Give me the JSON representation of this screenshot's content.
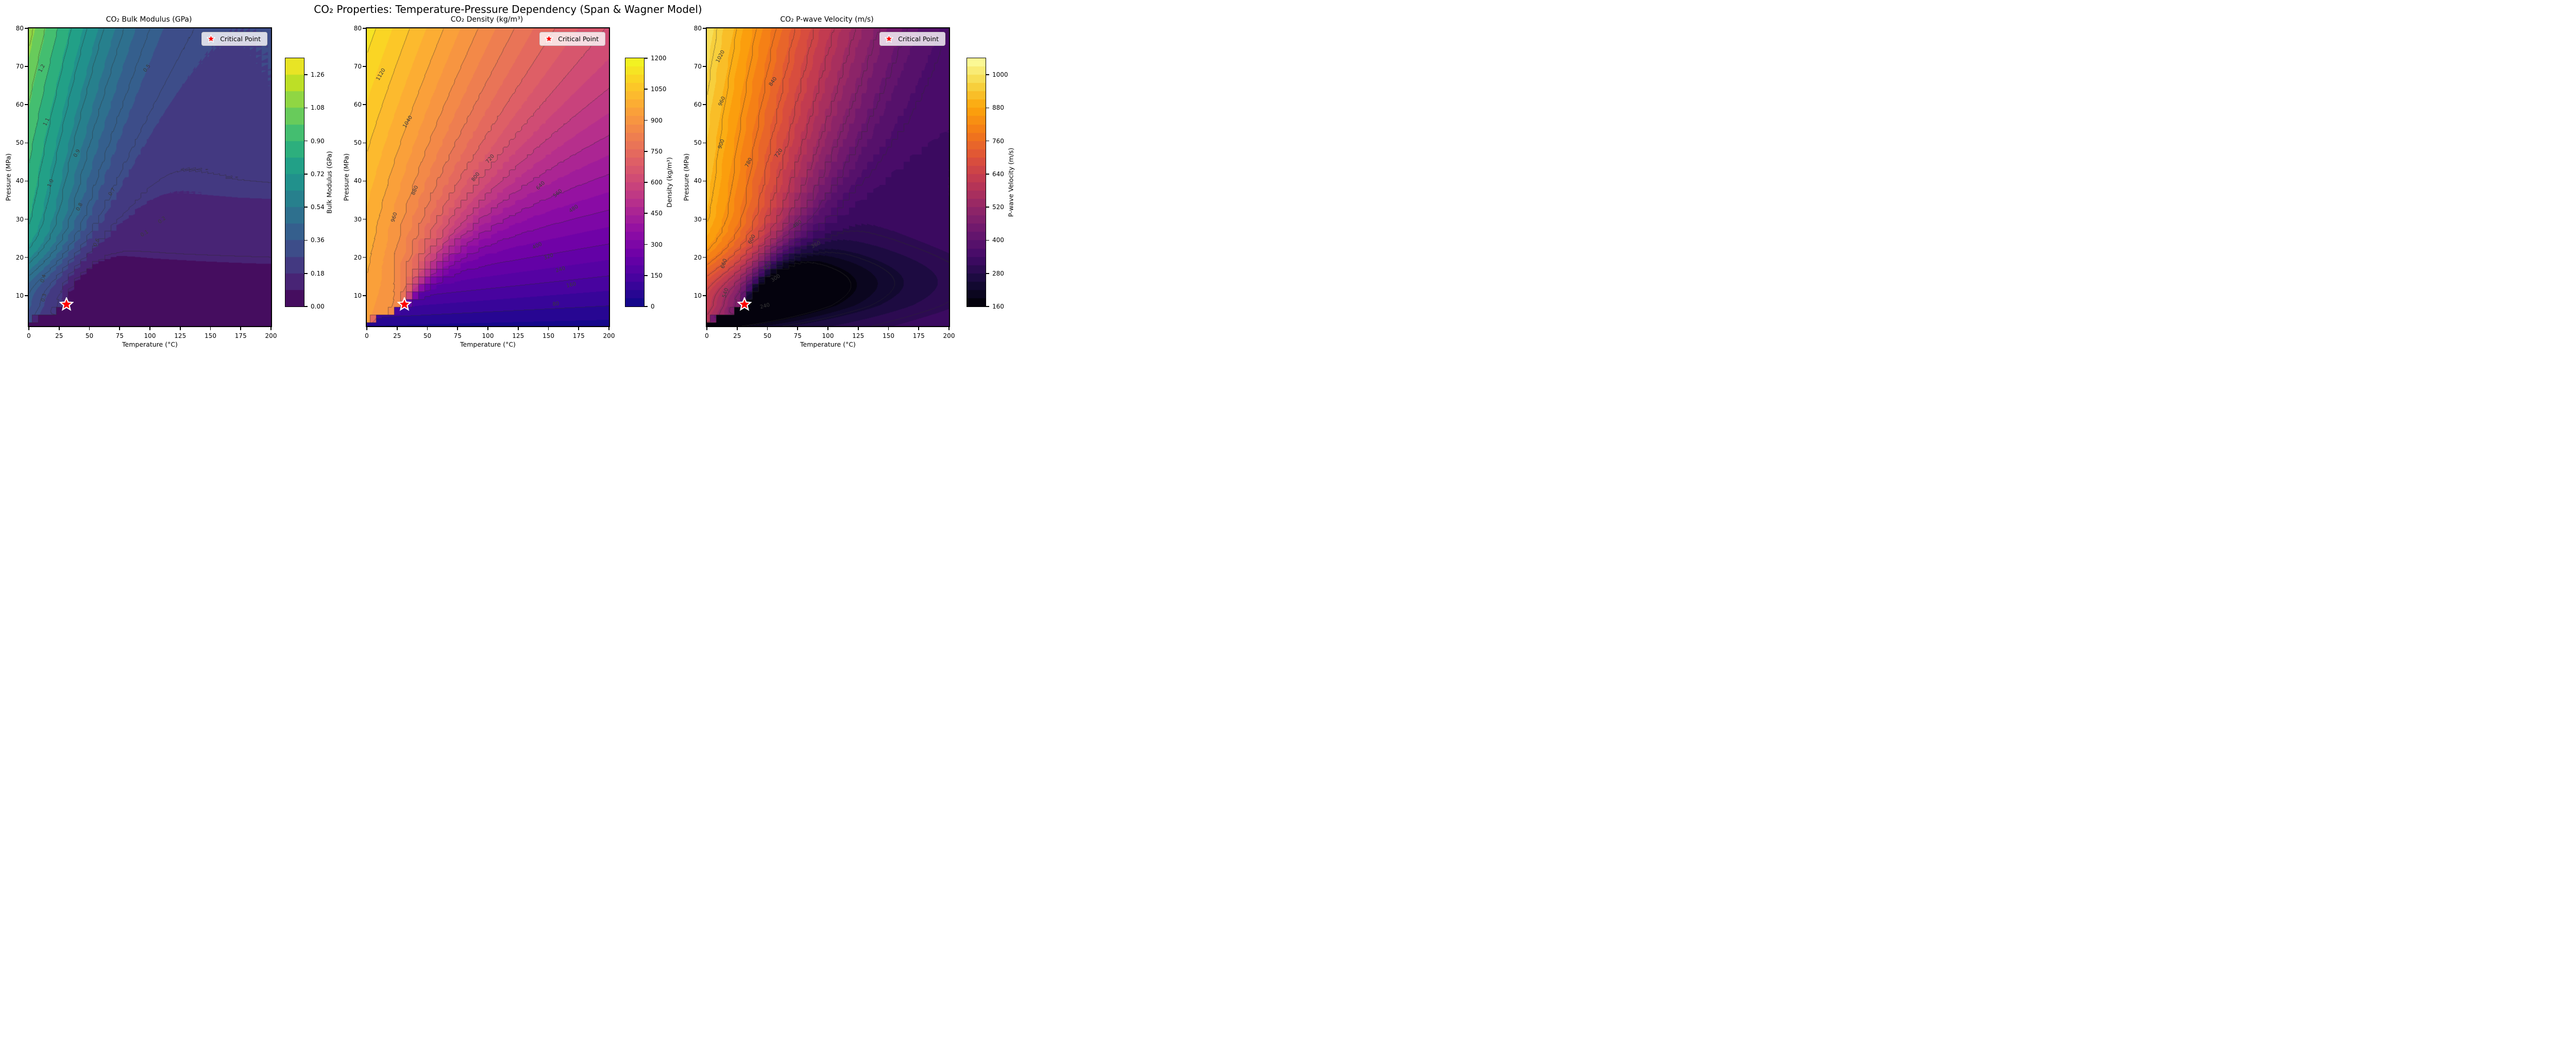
{
  "figure": {
    "suptitle": "CO₂ Properties: Temperature-Pressure Dependency (Span & Wagner Model)",
    "background": "#ffffff"
  },
  "shared_axes": {
    "xlabel": "Temperature (°C)",
    "ylabel": "Pressure (MPa)",
    "x_ticks": [
      "0",
      "25",
      "50",
      "75",
      "100",
      "125",
      "150",
      "175",
      "200"
    ],
    "y_ticks": [
      "10",
      "20",
      "30",
      "40",
      "50",
      "60",
      "70",
      "80"
    ],
    "x_range": [
      0,
      200
    ],
    "y_range": [
      2,
      80
    ]
  },
  "legend": {
    "label": "Critical Point",
    "marker": "star-icon",
    "marker_color": "#ff0000",
    "marker_edge_color": "#ffffff"
  },
  "critical_point": {
    "temperature_c": 31.1,
    "pressure_mpa": 7.38
  },
  "chart_data": [
    {
      "type": "heatmap",
      "subtype": "filled-contour",
      "title": "CO₂ Bulk Modulus (GPa)",
      "colormap": "viridis",
      "colorbar_label": "Bulk Modulus (GPa)",
      "colorbar_range": [
        0,
        1.35
      ],
      "colorbar_ticks": [
        {
          "label": "1.26",
          "v": 1.26
        },
        {
          "label": "1.08",
          "v": 1.08
        },
        {
          "label": "0.90",
          "v": 0.9
        },
        {
          "label": "0.72",
          "v": 0.72
        },
        {
          "label": "0.54",
          "v": 0.54
        },
        {
          "label": "0.36",
          "v": 0.36
        },
        {
          "label": "0.18",
          "v": 0.18
        },
        {
          "label": "0.00",
          "v": 0
        }
      ],
      "fill_min": 0,
      "fill_step": 0.09,
      "fill_bands": 15,
      "line_step": 0.1,
      "x_range": [
        0,
        200
      ],
      "y_range": [
        2,
        80
      ],
      "contour_labels": [
        {
          "v": "1.2",
          "fx": 0.055,
          "fy": 0.135,
          "rot": -62
        },
        {
          "v": "1.1",
          "fx": 0.075,
          "fy": 0.315,
          "rot": -64
        },
        {
          "v": "1.0",
          "fx": 0.092,
          "fy": 0.52,
          "rot": -66
        },
        {
          "v": "0.9",
          "fx": 0.2,
          "fy": 0.42,
          "rot": -60
        },
        {
          "v": "0.8",
          "fx": 0.21,
          "fy": 0.6,
          "rot": -63
        },
        {
          "v": "0.7",
          "fx": 0.345,
          "fy": 0.55,
          "rot": -56
        },
        {
          "v": "0.6",
          "fx": 0.28,
          "fy": 0.72,
          "rot": -64
        },
        {
          "v": "0.5",
          "fx": 0.49,
          "fy": 0.135,
          "rot": -52
        },
        {
          "v": "0.4",
          "fx": 0.062,
          "fy": 0.84,
          "rot": -73
        },
        {
          "v": "0.3",
          "fx": 0.063,
          "fy": 0.905,
          "rot": -76
        },
        {
          "v": "0.2",
          "fx": 0.55,
          "fy": 0.645,
          "rot": -38
        },
        {
          "v": "0.1",
          "fx": 0.478,
          "fy": 0.69,
          "rot": -32
        }
      ]
    },
    {
      "type": "heatmap",
      "subtype": "filled-contour",
      "title": "CO₂ Density (kg/m³)",
      "colormap": "plasma",
      "colorbar_label": "Density (kg/m³)",
      "colorbar_range": [
        0,
        1200
      ],
      "colorbar_ticks": [
        {
          "label": "1200",
          "v": 1200
        },
        {
          "label": "1050",
          "v": 1050
        },
        {
          "label": "900",
          "v": 900
        },
        {
          "label": "750",
          "v": 750
        },
        {
          "label": "600",
          "v": 600
        },
        {
          "label": "450",
          "v": 450
        },
        {
          "label": "300",
          "v": 300
        },
        {
          "label": "150",
          "v": 150
        },
        {
          "label": "0",
          "v": 0
        }
      ],
      "fill_min": 0,
      "fill_step": 40,
      "fill_bands": 30,
      "line_step": 80,
      "x_range": [
        0,
        200
      ],
      "y_range": [
        2,
        80
      ],
      "contour_labels": [
        {
          "v": "1120",
          "fx": 0.06,
          "fy": 0.155,
          "rot": -60
        },
        {
          "v": "1040",
          "fx": 0.17,
          "fy": 0.315,
          "rot": -58
        },
        {
          "v": "960",
          "fx": 0.115,
          "fy": 0.635,
          "rot": -73
        },
        {
          "v": "880",
          "fx": 0.2,
          "fy": 0.545,
          "rot": -66
        },
        {
          "v": "800",
          "fx": 0.45,
          "fy": 0.5,
          "rot": -53
        },
        {
          "v": "720",
          "fx": 0.51,
          "fy": 0.44,
          "rot": -50
        },
        {
          "v": "640",
          "fx": 0.72,
          "fy": 0.53,
          "rot": -45
        },
        {
          "v": "560",
          "fx": 0.79,
          "fy": 0.555,
          "rot": -40
        },
        {
          "v": "480",
          "fx": 0.855,
          "fy": 0.607,
          "rot": -35
        },
        {
          "v": "400",
          "fx": 0.705,
          "fy": 0.732,
          "rot": -25
        },
        {
          "v": "320",
          "fx": 0.752,
          "fy": 0.768,
          "rot": -20
        },
        {
          "v": "240",
          "fx": 0.8,
          "fy": 0.812,
          "rot": -17
        },
        {
          "v": "160",
          "fx": 0.845,
          "fy": 0.864,
          "rot": -13
        },
        {
          "v": "80",
          "fx": 0.78,
          "fy": 0.928,
          "rot": -8
        }
      ]
    },
    {
      "type": "heatmap",
      "subtype": "filled-contour",
      "title": "CO₂ P-wave Velocity (m/s)",
      "colormap": "inferno",
      "colorbar_label": "P-wave Velocity (m/s)",
      "colorbar_range": [
        160,
        1060
      ],
      "colorbar_ticks": [
        {
          "label": "1000",
          "v": 1000
        },
        {
          "label": "880",
          "v": 880
        },
        {
          "label": "760",
          "v": 760
        },
        {
          "label": "640",
          "v": 640
        },
        {
          "label": "520",
          "v": 520
        },
        {
          "label": "400",
          "v": 400
        },
        {
          "label": "280",
          "v": 280
        },
        {
          "label": "160",
          "v": 160
        }
      ],
      "fill_min": 160,
      "fill_step": 30,
      "fill_bands": 30,
      "line_step": 60,
      "x_range": [
        0,
        200
      ],
      "y_range": [
        2,
        80
      ],
      "contour_labels": [
        {
          "v": "1020",
          "fx": 0.057,
          "fy": 0.095,
          "rot": -63
        },
        {
          "v": "960",
          "fx": 0.063,
          "fy": 0.245,
          "rot": -66
        },
        {
          "v": "900",
          "fx": 0.062,
          "fy": 0.39,
          "rot": -70
        },
        {
          "v": "840",
          "fx": 0.275,
          "fy": 0.18,
          "rot": -56
        },
        {
          "v": "780",
          "fx": 0.175,
          "fy": 0.452,
          "rot": -64
        },
        {
          "v": "720",
          "fx": 0.297,
          "fy": 0.42,
          "rot": -55
        },
        {
          "v": "660",
          "fx": 0.072,
          "fy": 0.79,
          "rot": -73
        },
        {
          "v": "600",
          "fx": 0.187,
          "fy": 0.71,
          "rot": -62
        },
        {
          "v": "540",
          "fx": 0.078,
          "fy": 0.89,
          "rot": -73
        },
        {
          "v": "480",
          "fx": 0.375,
          "fy": 0.66,
          "rot": -38
        },
        {
          "v": "420",
          "fx": 0.25,
          "fy": 0.8,
          "rot": -46
        },
        {
          "v": "360",
          "fx": 0.452,
          "fy": 0.728,
          "rot": -27
        },
        {
          "v": "300",
          "fx": 0.286,
          "fy": 0.84,
          "rot": -32
        },
        {
          "v": "240",
          "fx": 0.24,
          "fy": 0.935,
          "rot": -15
        }
      ]
    }
  ]
}
